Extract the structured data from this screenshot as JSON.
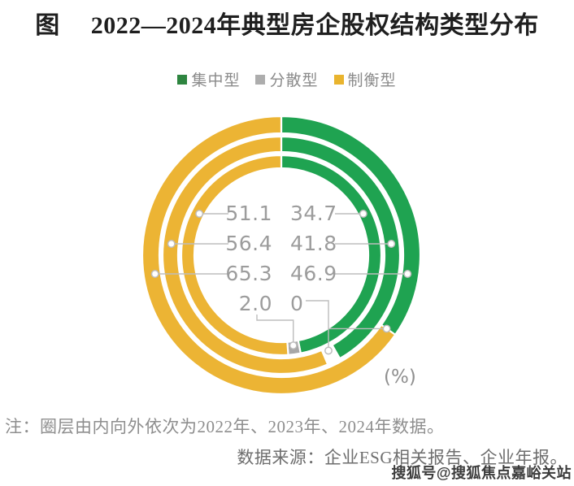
{
  "header": {
    "prefix": "图",
    "title": "2022—2024年典型房企股权结构类型分布"
  },
  "legend": {
    "items": [
      {
        "label": "集中型",
        "color": "#2E8540"
      },
      {
        "label": "分散型",
        "color": "#ADADAD"
      },
      {
        "label": "制衡型",
        "color": "#E9B42E"
      }
    ]
  },
  "chart_data": {
    "type": "donut",
    "title": "2022—2024年典型房企股权结构类型分布",
    "unit_label": "(%)",
    "categories": [
      "集中型",
      "分散型",
      "制衡型"
    ],
    "category_colors": {
      "集中型": "#1FA351",
      "分散型": "#A7A7A7",
      "制衡型": "#ECB434"
    },
    "ring_order_note": "圈层由内向外依次为2022年、2023年、2024年数据",
    "rings_inner_to_outer": [
      {
        "year": "2022年",
        "segments": [
          {
            "category": "集中型",
            "pct": 46.9
          },
          {
            "category": "分散型",
            "pct": 2.0
          },
          {
            "category": "制衡型",
            "pct": 51.1
          }
        ]
      },
      {
        "year": "2023年",
        "segments": [
          {
            "category": "集中型",
            "pct": 41.8
          },
          {
            "category": "gap",
            "pct": 1.8
          },
          {
            "category": "制衡型",
            "pct": 56.4
          }
        ]
      },
      {
        "year": "2024年",
        "segments": [
          {
            "category": "集中型",
            "pct": 34.7
          },
          {
            "category": "制衡型",
            "pct": 65.3
          }
        ]
      }
    ],
    "center_labels": {
      "left_column_category": "制衡型",
      "right_column_category": "集中型",
      "bottom_row_category": "分散型",
      "rows": [
        {
          "left": "51.1",
          "right": "34.7"
        },
        {
          "left": "56.4",
          "right": "41.8"
        },
        {
          "left": "65.3",
          "right": "46.9"
        },
        {
          "left": "2.0",
          "right": "0"
        }
      ]
    }
  },
  "footnotes": {
    "note": "注：圈层由内向外依次为2022年、2023年、2024年数据。",
    "source": "数据来源：企业ESG相关报告、企业年报。",
    "watermark": "搜狐号@搜狐焦点嘉峪关站"
  }
}
